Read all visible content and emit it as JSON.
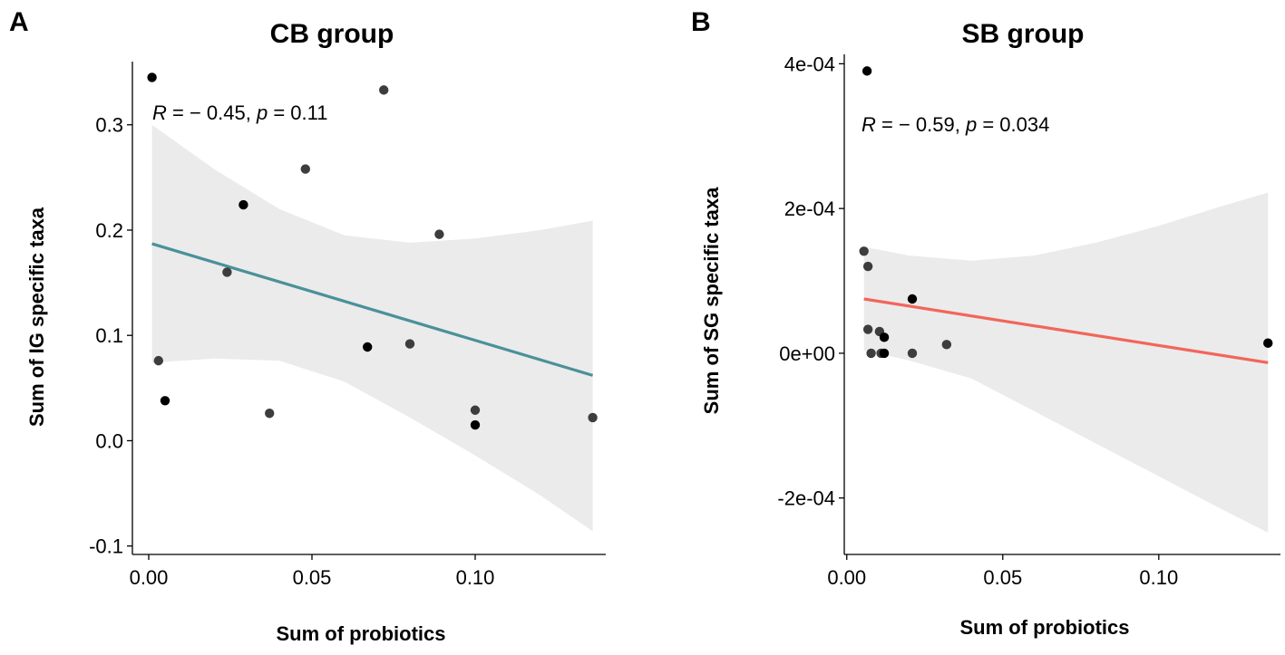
{
  "chart_data": [
    {
      "panel": "A",
      "type": "scatter",
      "title": "CB group",
      "xlabel": "Sum of probiotics",
      "ylabel": "Sum of IG specific  taxa",
      "xlim": [
        -0.005,
        0.14
      ],
      "ylim": [
        -0.108,
        0.36
      ],
      "x_ticks": [
        0.0,
        0.05,
        0.1
      ],
      "x_tick_labels": [
        "0.00",
        "0.05",
        "0.10"
      ],
      "y_ticks": [
        -0.1,
        0.0,
        0.1,
        0.2,
        0.3
      ],
      "y_tick_labels": [
        "-0.1",
        "0.0",
        "0.1",
        "0.2",
        "0.3"
      ],
      "annotation": {
        "r_symbol": "R",
        "r_text": " = − 0.45, ",
        "p_symbol": "p",
        "p_text": " = 0.11"
      },
      "line_color": "#4a9199",
      "points": [
        {
          "x": 0.001,
          "y": 0.345
        },
        {
          "x": 0.072,
          "y": 0.333
        },
        {
          "x": 0.048,
          "y": 0.258
        },
        {
          "x": 0.029,
          "y": 0.224
        },
        {
          "x": 0.089,
          "y": 0.196
        },
        {
          "x": 0.024,
          "y": 0.16
        },
        {
          "x": 0.067,
          "y": 0.089
        },
        {
          "x": 0.08,
          "y": 0.092
        },
        {
          "x": 0.003,
          "y": 0.076
        },
        {
          "x": 0.005,
          "y": 0.038
        },
        {
          "x": 0.037,
          "y": 0.026
        },
        {
          "x": 0.1,
          "y": 0.029
        },
        {
          "x": 0.1,
          "y": 0.015
        },
        {
          "x": 0.136,
          "y": 0.022
        }
      ],
      "fit": {
        "x": [
          0.001,
          0.136
        ],
        "y": [
          0.187,
          0.062
        ]
      },
      "ci_upper": {
        "x": [
          0.001,
          0.02,
          0.04,
          0.06,
          0.08,
          0.1,
          0.12,
          0.136
        ],
        "y": [
          0.3,
          0.258,
          0.22,
          0.195,
          0.188,
          0.192,
          0.2,
          0.209
        ]
      },
      "ci_lower": {
        "x": [
          0.001,
          0.02,
          0.04,
          0.06,
          0.08,
          0.1,
          0.12,
          0.136
        ],
        "y": [
          0.074,
          0.078,
          0.076,
          0.056,
          0.022,
          -0.014,
          -0.052,
          -0.086
        ]
      }
    },
    {
      "panel": "B",
      "type": "scatter",
      "title": "SB group",
      "xlabel": "Sum of probiotics",
      "ylabel": "Sum of SG specific taxa",
      "xlim": [
        -0.0008,
        0.139
      ],
      "ylim": [
        -0.000278,
        0.000413
      ],
      "x_ticks": [
        0.0,
        0.05,
        0.1
      ],
      "x_tick_labels": [
        "0.00",
        "0.05",
        "0.10"
      ],
      "y_ticks": [
        -0.0002,
        0.0,
        0.0002,
        0.0004
      ],
      "y_tick_labels": [
        "-2e-04",
        "0e+00",
        "2e-04",
        "4e-04"
      ],
      "annotation": {
        "r_symbol": "R",
        "r_text": " = − 0.59, ",
        "p_symbol": "p",
        "p_text": " = 0.034"
      },
      "line_color": "#f2665a",
      "points": [
        {
          "x": 0.0065,
          "y": 0.00039
        },
        {
          "x": 0.0055,
          "y": 0.000141
        },
        {
          "x": 0.0068,
          "y": 0.00012
        },
        {
          "x": 0.021,
          "y": 7.5e-05
        },
        {
          "x": 0.0068,
          "y": 3.3e-05
        },
        {
          "x": 0.0105,
          "y": 3e-05
        },
        {
          "x": 0.012,
          "y": 2.2e-05
        },
        {
          "x": 0.0078,
          "y": 0.0
        },
        {
          "x": 0.011,
          "y": 0.0
        },
        {
          "x": 0.012,
          "y": 0.0
        },
        {
          "x": 0.021,
          "y": 0.0
        },
        {
          "x": 0.032,
          "y": 1.2e-05
        },
        {
          "x": 0.135,
          "y": 1.4e-05
        }
      ],
      "fit": {
        "x": [
          0.0055,
          0.135
        ],
        "y": [
          7.5e-05,
          -1.3e-05
        ]
      },
      "ci_upper": {
        "x": [
          0.0055,
          0.02,
          0.04,
          0.06,
          0.08,
          0.1,
          0.12,
          0.135
        ],
        "y": [
          0.000147,
          0.000135,
          0.000128,
          0.000135,
          0.000153,
          0.000176,
          0.000203,
          0.000222
        ]
      },
      "ci_lower": {
        "x": [
          0.0055,
          0.02,
          0.04,
          0.06,
          0.08,
          0.1,
          0.12,
          0.135
        ],
        "y": [
          4e-06,
          -1e-05,
          -3.5e-05,
          -8e-05,
          -0.000125,
          -0.00017,
          -0.000215,
          -0.000248
        ]
      }
    }
  ]
}
